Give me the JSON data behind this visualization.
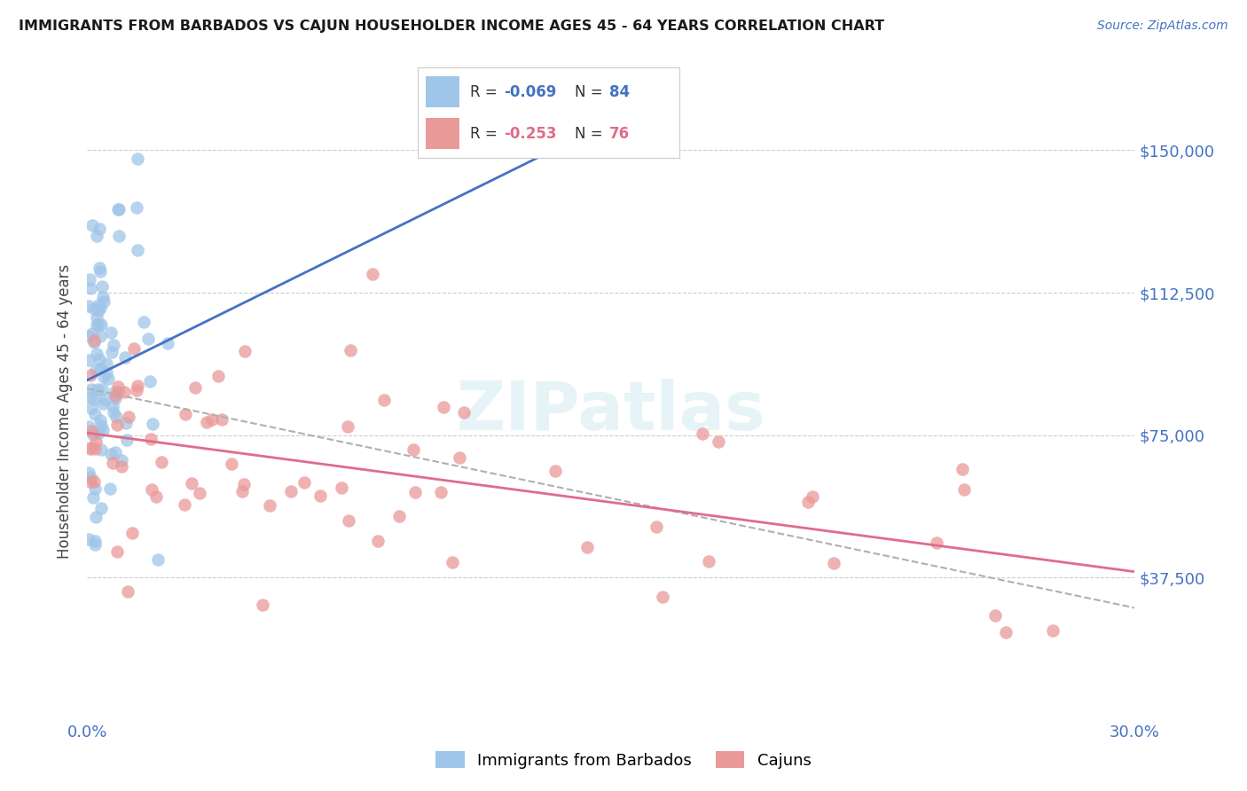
{
  "title": "IMMIGRANTS FROM BARBADOS VS CAJUN HOUSEHOLDER INCOME AGES 45 - 64 YEARS CORRELATION CHART",
  "source": "Source: ZipAtlas.com",
  "ylabel": "Householder Income Ages 45 - 64 years",
  "xlim": [
    0.0,
    0.3
  ],
  "ylim": [
    0,
    162500
  ],
  "yticks": [
    37500,
    75000,
    112500,
    150000
  ],
  "ytick_labels": [
    "$37,500",
    "$75,000",
    "$112,500",
    "$150,000"
  ],
  "xtick_labels": [
    "0.0%",
    "30.0%"
  ],
  "legend_r1": "R = -0.069",
  "legend_n1": "N = 84",
  "legend_r2": "R = -0.253",
  "legend_n2": "N = 76",
  "color_barbados": "#9fc5e8",
  "color_cajun": "#ea9999",
  "color_line_barbados": "#4472c4",
  "color_line_cajun": "#e06c8a",
  "color_dashed": "#b0b0b0",
  "color_ytick": "#4472c4",
  "color_xtick": "#4472c4",
  "color_source": "#4472c4",
  "background_color": "#ffffff",
  "watermark": "ZIPatlas",
  "barbados_seed": 7,
  "cajun_seed": 13
}
